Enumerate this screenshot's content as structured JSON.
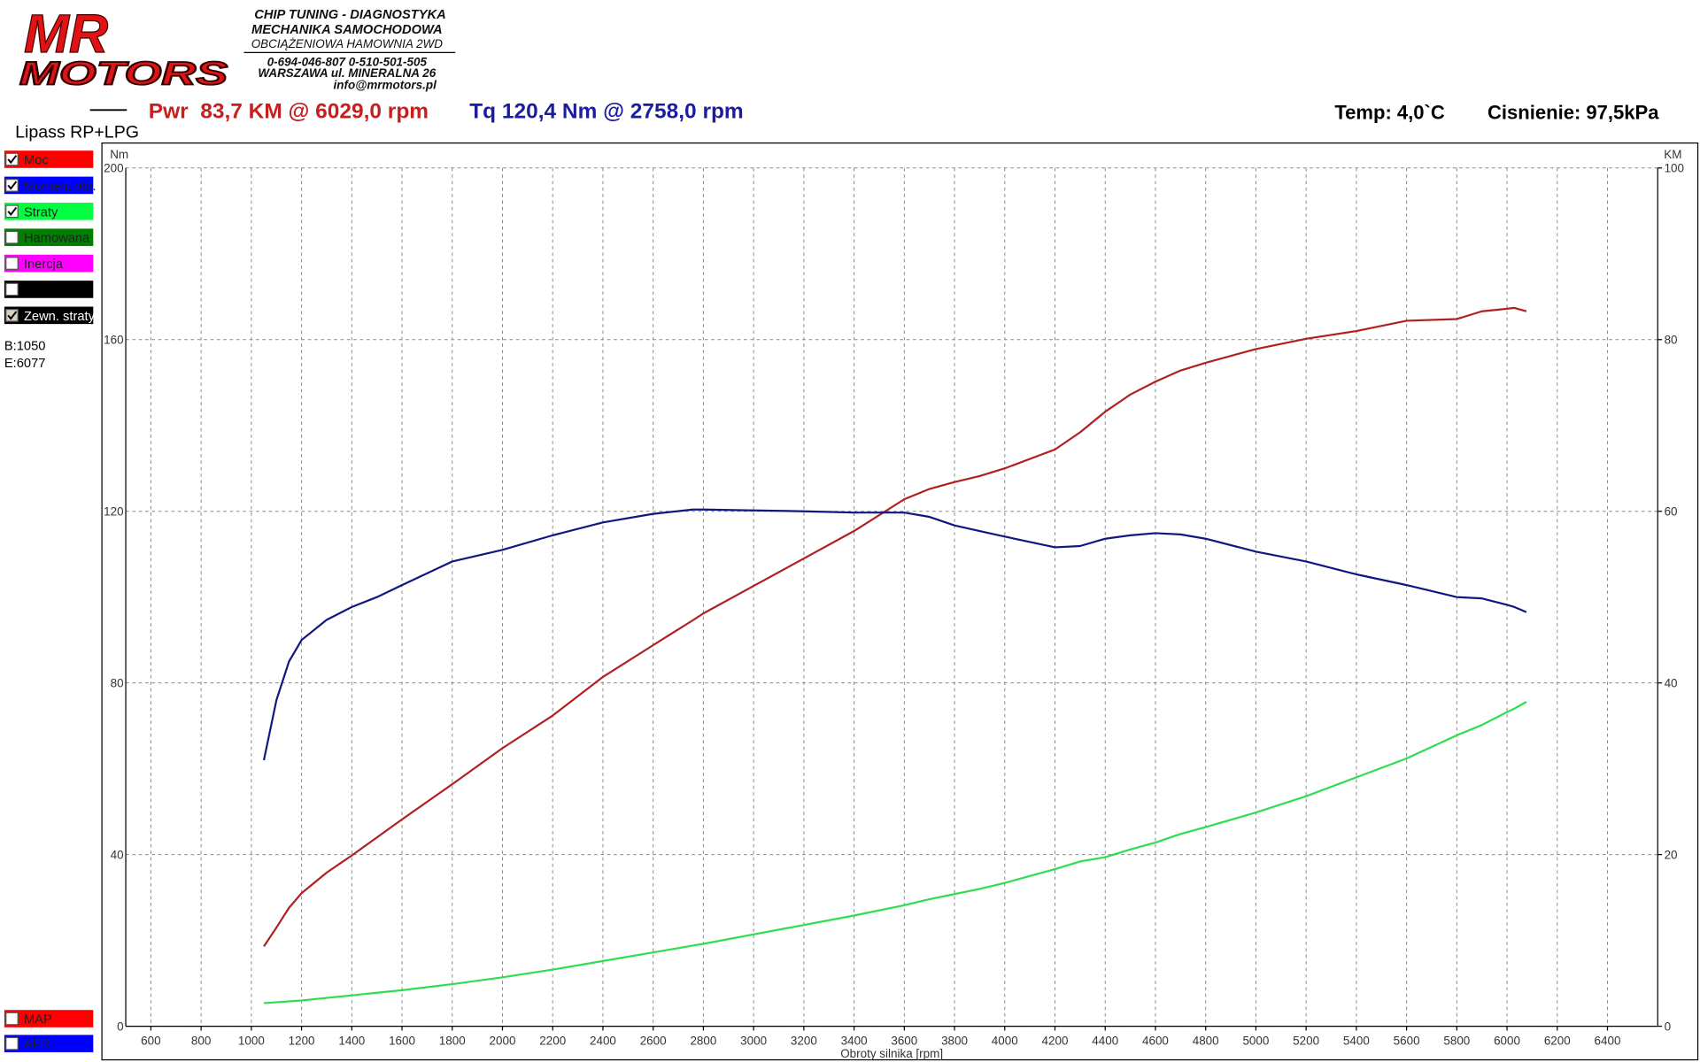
{
  "header": {
    "logo_top": "MR",
    "logo_bottom": "MOTORS",
    "lines": [
      "CHIP TUNING - DIAGNOSTYKA",
      "MECHANIKA SAMOCHODOWA",
      "OBCIĄŻENIOWA HAMOWNIA 2WD"
    ],
    "contact": [
      "0-694-046-807 0-510-501-505",
      "WARSZAWA ul. MINERALNA 26",
      "info@mrmotors.pl"
    ]
  },
  "run_name": "Lipass RP+LPG",
  "summary": {
    "power": "Pwr  83,7 KM @ 6029,0 rpm",
    "torque": "Tq 120,4 Nm @ 2758,0 rpm",
    "temp": "Temp: 4,0`C",
    "pressure": "Cisnienie: 97,5kPa"
  },
  "legend_toggles": [
    {
      "label": "Hamowana",
      "color": "#008000",
      "checked": false
    },
    {
      "label": "Inercja",
      "color": "#ff00ff",
      "checked": false
    },
    {
      "label": null,
      "color": "#000000",
      "checked": false
    },
    {
      "label": "Zewn. straty",
      "color": "#000000",
      "checked": true
    }
  ],
  "range": [
    "B:1050",
    "E:6077"
  ],
  "bottom_toggles": [
    {
      "label": "MAP",
      "color": "#ff0000",
      "checked": false
    },
    {
      "label": "AFR",
      "color": "#0000ff",
      "checked": false
    }
  ],
  "chart_data": {
    "type": "line",
    "x_label": "Obroty silnika [rpm]",
    "y_label": "Nm",
    "y2_label": "KM",
    "x": [
      1050,
      1100,
      1150,
      1200,
      1300,
      1400,
      1500,
      1600,
      1800,
      2000,
      2200,
      2400,
      2600,
      2758,
      2800,
      3000,
      3200,
      3400,
      3600,
      3700,
      3800,
      3900,
      4000,
      4200,
      4300,
      4400,
      4500,
      4600,
      4700,
      4800,
      5000,
      5200,
      5400,
      5600,
      5800,
      5900,
      6000,
      6029,
      6077
    ],
    "xlim": [
      500,
      6600
    ],
    "xticks": [
      600,
      800,
      1000,
      1200,
      1400,
      1600,
      1800,
      2000,
      2200,
      2400,
      2600,
      2800,
      3000,
      3200,
      3400,
      3600,
      3800,
      4000,
      4200,
      4400,
      4600,
      4800,
      5000,
      5200,
      5400,
      5600,
      5800,
      6000,
      6200,
      6400
    ],
    "ylim": [
      0,
      200
    ],
    "yticks": [
      0,
      40,
      80,
      120,
      160,
      200
    ],
    "y2lim": [
      0,
      100
    ],
    "y2ticks": [
      0,
      20,
      40,
      60,
      80,
      100
    ],
    "grid": true,
    "series": [
      {
        "name": "Moc",
        "color": "#b02020",
        "button_color": "#ff0000",
        "checked": true,
        "axis": "y2",
        "values": [
          9.3,
          11.5,
          13.8,
          15.5,
          17.9,
          19.9,
          22.0,
          24.1,
          28.2,
          32.4,
          36.2,
          40.7,
          44.4,
          47.3,
          48.1,
          51.3,
          54.5,
          57.7,
          61.4,
          62.6,
          63.4,
          64.1,
          65.0,
          67.2,
          69.2,
          71.6,
          73.6,
          75.1,
          76.4,
          77.3,
          78.9,
          80.1,
          81.0,
          82.2,
          82.4,
          83.3,
          83.6,
          83.7,
          83.3
        ]
      },
      {
        "name": "Moment obr.",
        "color": "#101880",
        "button_color": "#0000ff",
        "checked": true,
        "values": [
          62,
          76,
          85,
          90,
          94.7,
          97.7,
          100,
          102.8,
          108.3,
          111,
          114.4,
          117.4,
          119.4,
          120.4,
          120.4,
          120.2,
          120,
          119.7,
          119.7,
          118.7,
          116.7,
          115.4,
          114.1,
          111.6,
          111.9,
          113.6,
          114.4,
          114.9,
          114.6,
          113.6,
          110.6,
          108.3,
          105.3,
          102.8,
          100,
          99.7,
          98.2,
          97.7,
          96.5
        ]
      },
      {
        "name": "Straty",
        "color": "#30dd50",
        "button_color": "#00ff40",
        "checked": true,
        "axis": "y2",
        "values": [
          2.7,
          2.8,
          2.9,
          3.0,
          3.3,
          3.6,
          3.9,
          4.2,
          4.9,
          5.7,
          6.6,
          7.6,
          8.6,
          9.4,
          9.6,
          10.7,
          11.8,
          12.9,
          14.1,
          14.8,
          15.4,
          16.0,
          16.7,
          18.3,
          19.2,
          19.7,
          20.6,
          21.4,
          22.4,
          23.2,
          24.9,
          26.8,
          29.0,
          31.2,
          33.9,
          35.1,
          36.6,
          37.0,
          37.8
        ]
      }
    ]
  }
}
